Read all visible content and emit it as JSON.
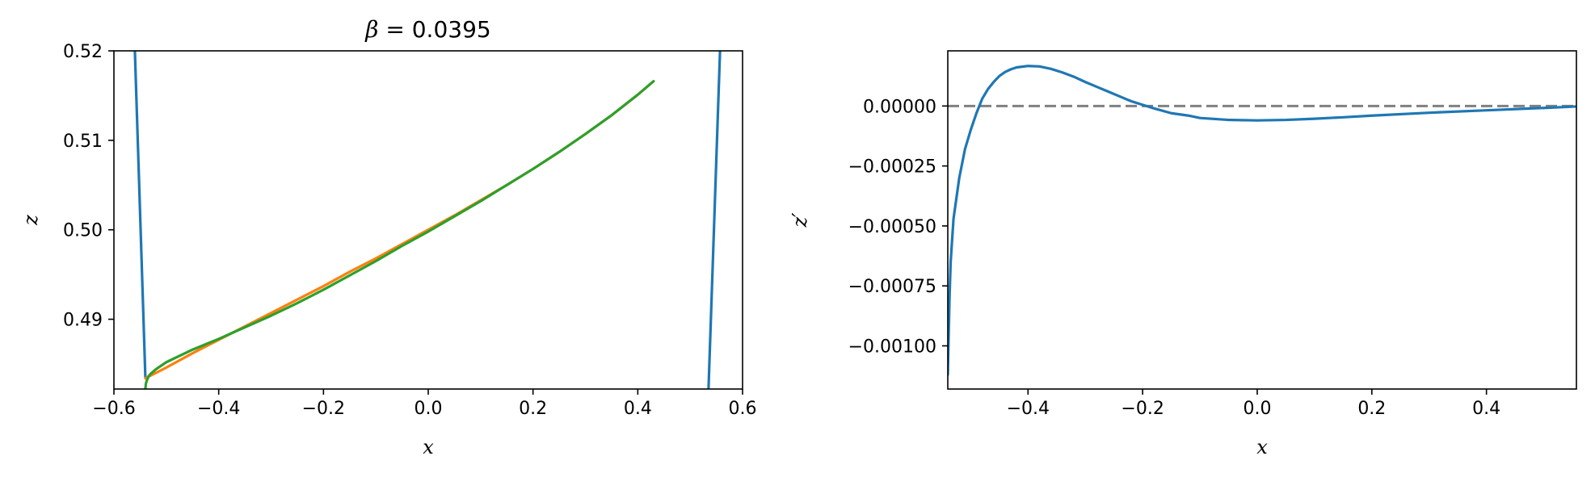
{
  "chart_data": [
    {
      "type": "line",
      "title": "β = 0.0395",
      "title_symbol": "β",
      "title_rest": " = 0.0395",
      "xlabel": "x",
      "ylabel": "z",
      "xlim": [
        -0.6,
        0.6
      ],
      "ylim": [
        0.4822,
        0.52
      ],
      "xticks": [
        -0.6,
        -0.4,
        -0.2,
        0.0,
        0.2,
        0.4,
        0.6
      ],
      "xtick_labels": [
        "−0.6",
        "−0.4",
        "−0.2",
        "0.0",
        "0.2",
        "0.4",
        "0.6"
      ],
      "yticks": [
        0.49,
        0.5,
        0.51,
        0.52
      ],
      "ytick_labels": [
        "0.49",
        "0.50",
        "0.51",
        "0.52"
      ],
      "series": [
        {
          "color": "#1f77b4",
          "segments": [
            [
              [
                -0.56,
                0.52
              ],
              [
                -0.54,
                0.4835
              ]
            ],
            [
              [
                0.535,
                0.4822
              ],
              [
                0.557,
                0.52
              ]
            ]
          ]
        },
        {
          "color": "#ff7f0e",
          "x": [
            -0.54,
            -0.53,
            -0.5,
            -0.45,
            -0.4,
            -0.35,
            -0.3,
            -0.25,
            -0.2,
            -0.15,
            -0.1,
            -0.05,
            0.0,
            0.05,
            0.1,
            0.15,
            0.2,
            0.25,
            0.3,
            0.35,
            0.4,
            0.43
          ],
          "y": [
            0.4834,
            0.4837,
            0.4846,
            0.4862,
            0.4877,
            0.4892,
            0.4907,
            0.4922,
            0.4937,
            0.4953,
            0.4968,
            0.4984,
            0.5,
            0.5016,
            0.5033,
            0.505,
            0.5068,
            0.5087,
            0.5107,
            0.5128,
            0.5151,
            0.5166
          ]
        },
        {
          "color": "#2ca02c",
          "x": [
            -0.54,
            -0.539,
            -0.537,
            -0.534,
            -0.53,
            -0.52,
            -0.5,
            -0.45,
            -0.4,
            -0.35,
            -0.3,
            -0.25,
            -0.2,
            -0.15,
            -0.1,
            -0.05,
            0.0,
            0.05,
            0.1,
            0.15,
            0.2,
            0.25,
            0.3,
            0.35,
            0.4,
            0.43
          ],
          "y": [
            0.4822,
            0.4828,
            0.4832,
            0.4836,
            0.4839,
            0.4844,
            0.4852,
            0.4866,
            0.4878,
            0.4891,
            0.4904,
            0.4918,
            0.4933,
            0.4949,
            0.4965,
            0.4982,
            0.4998,
            0.5015,
            0.5032,
            0.505,
            0.5068,
            0.5087,
            0.5107,
            0.5128,
            0.5151,
            0.5166
          ]
        }
      ]
    },
    {
      "type": "line",
      "xlabel": "x",
      "ylabel": "z′",
      "xlim": [
        -0.54,
        0.557
      ],
      "ylim": [
        -0.00118,
        0.00023
      ],
      "xticks": [
        -0.4,
        -0.2,
        0.0,
        0.2,
        0.4
      ],
      "xtick_labels": [
        "−0.4",
        "−0.2",
        "0.0",
        "0.2",
        "0.4"
      ],
      "yticks": [
        0.0,
        -0.00025,
        -0.0005,
        -0.00075,
        -0.001
      ],
      "ytick_labels": [
        "0.00000",
        "−0.00025",
        "−0.00050",
        "−0.00075",
        "−0.00100"
      ],
      "reference_line": {
        "y": 0.0,
        "color": "#808080",
        "style": "dashed"
      },
      "series": [
        {
          "color": "#1f77b4",
          "x": [
            -0.54,
            -0.537,
            -0.535,
            -0.53,
            -0.52,
            -0.51,
            -0.5,
            -0.49,
            -0.48,
            -0.47,
            -0.46,
            -0.45,
            -0.44,
            -0.43,
            -0.42,
            -0.4,
            -0.38,
            -0.36,
            -0.34,
            -0.32,
            -0.3,
            -0.28,
            -0.26,
            -0.24,
            -0.22,
            -0.2,
            -0.18,
            -0.15,
            -0.12,
            -0.1,
            -0.05,
            0.0,
            0.05,
            0.1,
            0.15,
            0.2,
            0.3,
            0.4,
            0.5,
            0.557
          ],
          "y": [
            -0.00112,
            -0.0008,
            -0.00065,
            -0.00047,
            -0.0003,
            -0.00018,
            -0.0001,
            -3e-05,
            3e-05,
            7e-05,
            0.0001,
            0.000125,
            0.000142,
            0.000153,
            0.000161,
            0.000167,
            0.000165,
            0.000155,
            0.00014,
            0.000122,
            0.0001,
            8e-05,
            6e-05,
            4e-05,
            2e-05,
            5e-06,
            -1e-05,
            -3e-05,
            -4e-05,
            -5e-05,
            -5.8e-05,
            -6e-05,
            -5.8e-05,
            -5.3e-05,
            -4.7e-05,
            -4e-05,
            -2.8e-05,
            -1.8e-05,
            -8e-06,
            -2e-06
          ]
        }
      ]
    }
  ]
}
